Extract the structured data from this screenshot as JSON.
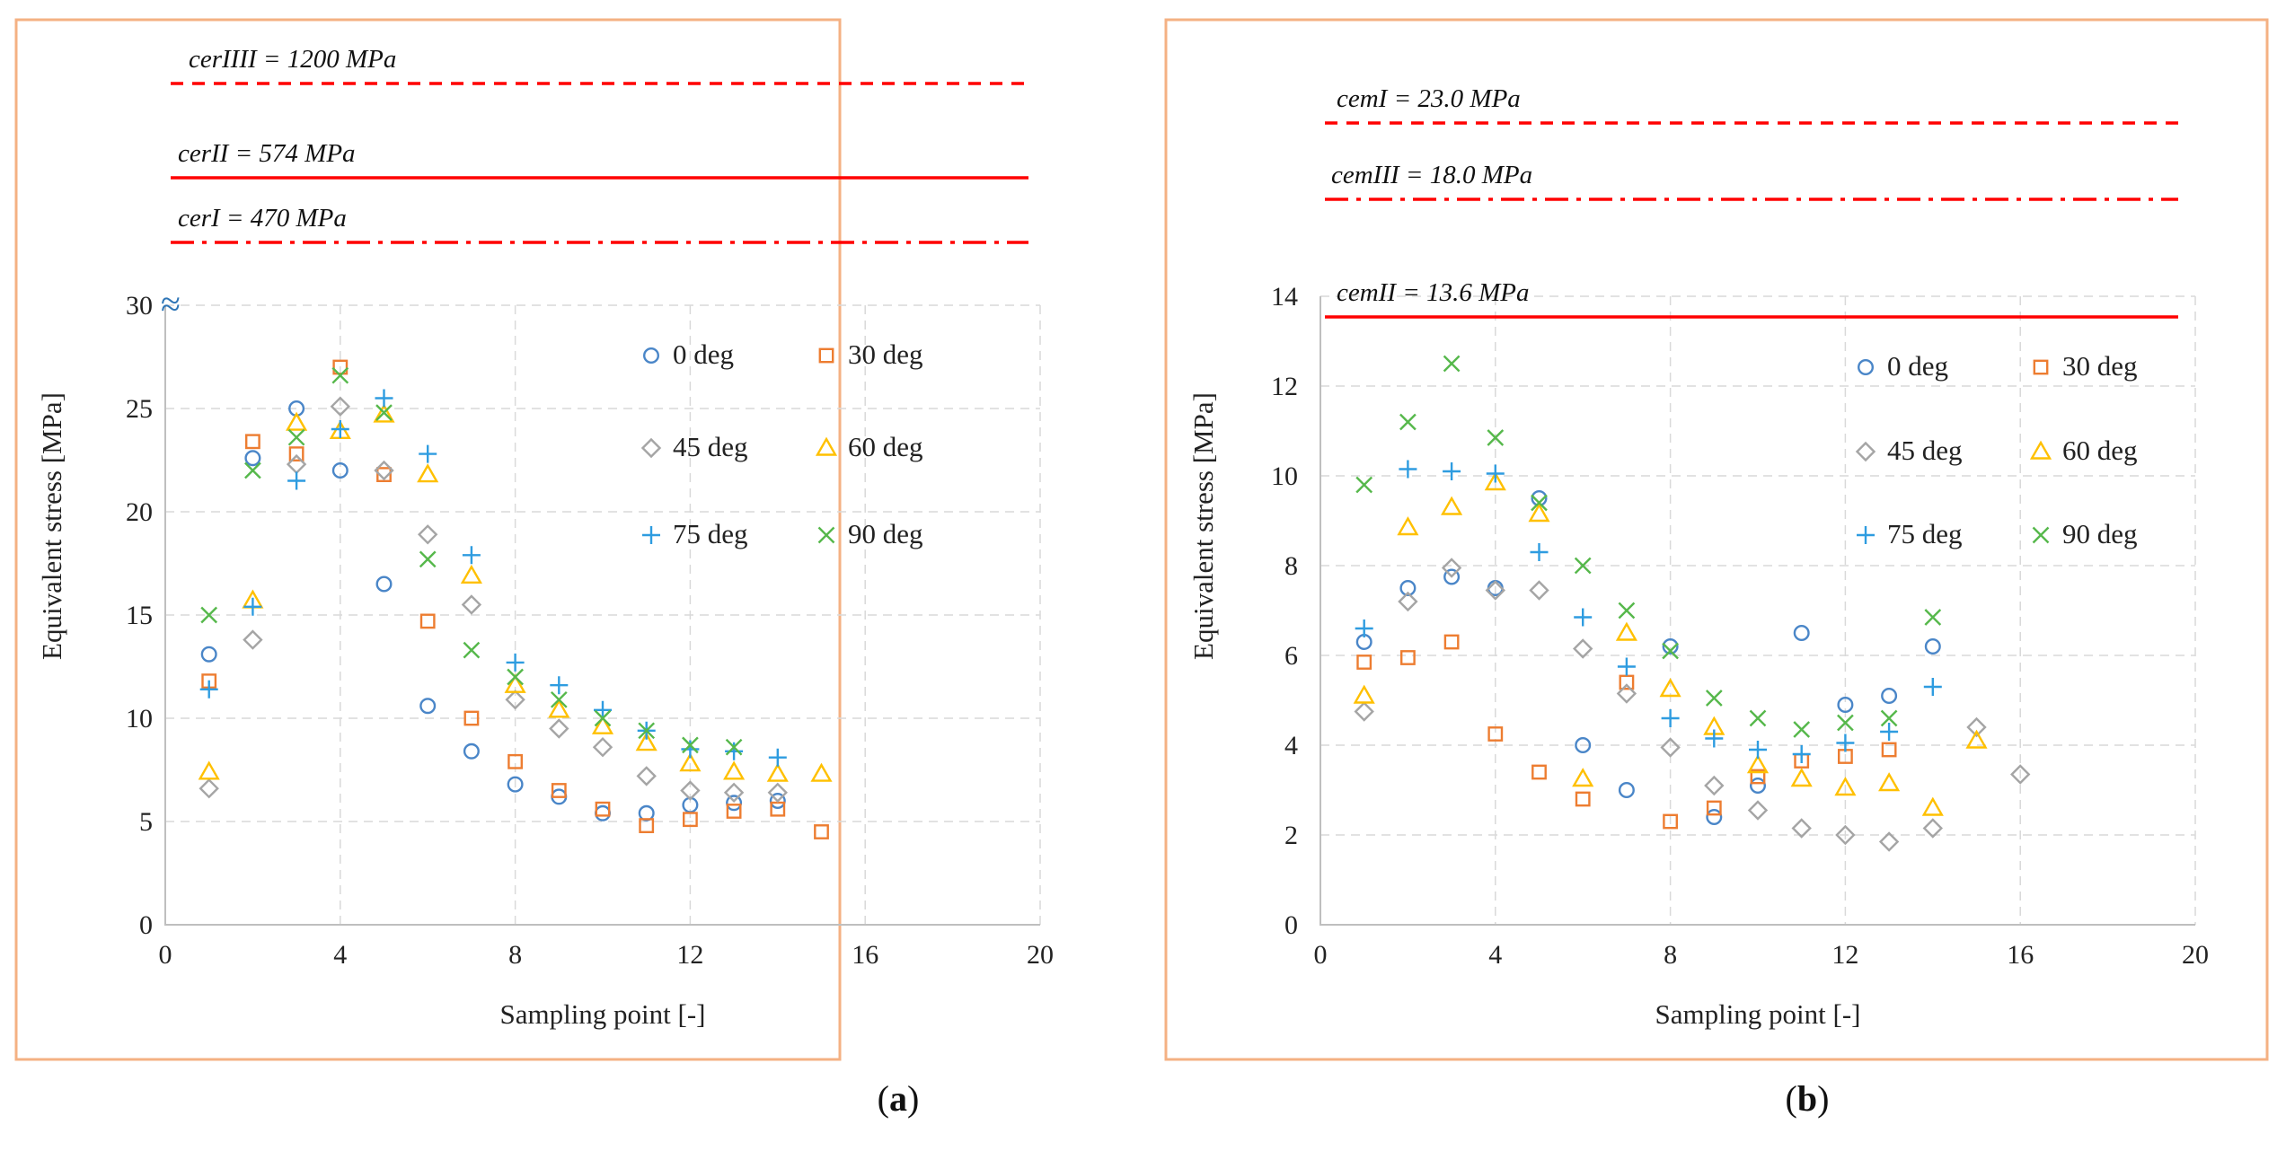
{
  "chart_data": [
    {
      "type": "scatter",
      "panel_label": "a",
      "xlabel": "Sampling point [-]",
      "ylabel": "Equivalent stress [MPa]",
      "xlim": [
        0,
        20
      ],
      "ylim": [
        0,
        30
      ],
      "x_ticks": [
        "0",
        "4",
        "8",
        "12",
        "16",
        "20"
      ],
      "y_ticks": [
        "0",
        "5",
        "10",
        "15",
        "20",
        "25",
        "30"
      ],
      "axis_break": "≈",
      "grid": true,
      "legend_position": "right",
      "critical_lines": [
        {
          "label": "cerIIII = 1200 MPa",
          "value": 1200,
          "style": "dashed"
        },
        {
          "label": "cerII = 574 MPa",
          "value": 574,
          "style": "solid"
        },
        {
          "label": "cerI = 470 MPa",
          "value": 470,
          "style": "dashdot"
        }
      ],
      "series": [
        {
          "name": "0 deg",
          "marker": "circle",
          "color": "#4a86c8",
          "x": [
            1,
            2,
            3,
            4,
            5,
            6,
            7,
            8,
            9,
            10,
            11,
            12,
            13,
            14
          ],
          "y": [
            13.1,
            22.6,
            25.0,
            22.0,
            16.5,
            10.6,
            8.4,
            6.8,
            6.2,
            5.4,
            5.4,
            5.8,
            5.9,
            6.0
          ]
        },
        {
          "name": "30 deg",
          "marker": "square",
          "color": "#ed7d31",
          "x": [
            1,
            2,
            3,
            4,
            5,
            6,
            7,
            8,
            9,
            10,
            11,
            12,
            13,
            14,
            15
          ],
          "y": [
            11.8,
            23.4,
            22.8,
            27.0,
            21.8,
            14.7,
            10.0,
            7.9,
            6.5,
            5.6,
            4.8,
            5.1,
            5.5,
            5.6,
            4.5
          ]
        },
        {
          "name": "45 deg",
          "marker": "diamond",
          "color": "#a5a5a5",
          "x": [
            1,
            2,
            3,
            4,
            5,
            6,
            7,
            8,
            9,
            10,
            11,
            12,
            13,
            14
          ],
          "y": [
            6.6,
            13.8,
            22.3,
            25.1,
            22.0,
            18.9,
            15.5,
            10.9,
            9.5,
            8.6,
            7.2,
            6.5,
            6.4,
            6.4
          ]
        },
        {
          "name": "60 deg",
          "marker": "triangle",
          "color": "#ffc000",
          "x": [
            1,
            2,
            3,
            4,
            5,
            6,
            7,
            8,
            9,
            10,
            11,
            12,
            13,
            14,
            15
          ],
          "y": [
            7.4,
            15.7,
            24.3,
            23.9,
            24.7,
            21.8,
            16.9,
            11.6,
            10.4,
            9.6,
            8.8,
            7.8,
            7.4,
            7.3,
            7.3
          ]
        },
        {
          "name": "75 deg",
          "marker": "plus",
          "color": "#2e9ce0",
          "x": [
            1,
            2,
            3,
            4,
            5,
            6,
            7,
            8,
            9,
            10,
            11,
            12,
            13,
            14
          ],
          "y": [
            11.4,
            15.4,
            21.5,
            24.0,
            25.5,
            22.8,
            17.9,
            12.7,
            11.6,
            10.4,
            9.4,
            8.5,
            8.4,
            8.1
          ]
        },
        {
          "name": "90 deg",
          "marker": "cross",
          "color": "#56b84b",
          "x": [
            1,
            2,
            3,
            4,
            5,
            6,
            7,
            8,
            9,
            10,
            11,
            12,
            13
          ],
          "y": [
            15.0,
            22.0,
            23.6,
            26.6,
            24.8,
            17.7,
            13.3,
            12.0,
            10.9,
            10.0,
            9.4,
            8.7,
            8.6
          ]
        }
      ]
    },
    {
      "type": "scatter",
      "panel_label": "b",
      "xlabel": "Sampling point [-]",
      "ylabel": "Equivalent stress [MPa]",
      "xlim": [
        0,
        20
      ],
      "ylim": [
        0,
        14
      ],
      "x_ticks": [
        "0",
        "4",
        "8",
        "12",
        "16",
        "20"
      ],
      "y_ticks": [
        "0",
        "2",
        "4",
        "6",
        "8",
        "10",
        "12",
        "14"
      ],
      "grid": true,
      "legend_position": "right",
      "critical_lines": [
        {
          "label": "cemI = 23.0 MPa",
          "value": 23.0,
          "style": "dashed"
        },
        {
          "label": "cemIII = 18.0 MPa",
          "value": 18.0,
          "style": "dashdot"
        },
        {
          "label": "cemII = 13.6 MPa",
          "value": 13.6,
          "style": "solid"
        }
      ],
      "series": [
        {
          "name": "0 deg",
          "marker": "circle",
          "color": "#4a86c8",
          "x": [
            1,
            2,
            3,
            4,
            5,
            6,
            7,
            8,
            9,
            10,
            11,
            12,
            13,
            14
          ],
          "y": [
            6.3,
            7.5,
            7.75,
            7.5,
            9.5,
            4.0,
            3.0,
            6.2,
            2.4,
            3.1,
            6.5,
            4.9,
            5.1,
            6.2
          ]
        },
        {
          "name": "30 deg",
          "marker": "square",
          "color": "#ed7d31",
          "x": [
            1,
            2,
            3,
            4,
            5,
            6,
            7,
            8,
            9,
            10,
            11,
            12,
            13
          ],
          "y": [
            5.85,
            5.95,
            6.3,
            4.25,
            3.4,
            2.8,
            5.4,
            2.3,
            2.6,
            3.3,
            3.65,
            3.75,
            3.9
          ]
        },
        {
          "name": "45 deg",
          "marker": "diamond",
          "color": "#a5a5a5",
          "x": [
            1,
            2,
            3,
            4,
            5,
            6,
            7,
            8,
            9,
            10,
            11,
            12,
            13,
            14,
            15,
            16
          ],
          "y": [
            4.75,
            7.2,
            7.95,
            7.45,
            7.45,
            6.15,
            5.15,
            3.95,
            3.1,
            2.55,
            2.15,
            2.0,
            1.85,
            2.15,
            4.4,
            3.35
          ]
        },
        {
          "name": "60 deg",
          "marker": "triangle",
          "color": "#ffc000",
          "x": [
            1,
            2,
            3,
            4,
            5,
            6,
            7,
            8,
            9,
            10,
            11,
            12,
            13,
            14,
            15
          ],
          "y": [
            5.1,
            8.85,
            9.3,
            9.85,
            9.15,
            3.25,
            6.5,
            5.25,
            4.4,
            3.55,
            3.25,
            3.05,
            3.15,
            2.6,
            4.1
          ]
        },
        {
          "name": "75 deg",
          "marker": "plus",
          "color": "#2e9ce0",
          "x": [
            1,
            2,
            3,
            4,
            5,
            6,
            7,
            8,
            9,
            10,
            11,
            12,
            13,
            14
          ],
          "y": [
            6.6,
            10.15,
            10.1,
            10.05,
            8.3,
            6.85,
            5.75,
            4.6,
            4.15,
            3.9,
            3.8,
            4.05,
            4.3,
            5.3
          ]
        },
        {
          "name": "90 deg",
          "marker": "cross",
          "color": "#56b84b",
          "x": [
            1,
            2,
            3,
            4,
            5,
            6,
            7,
            8,
            9,
            10,
            11,
            12,
            13,
            14
          ],
          "y": [
            9.8,
            11.2,
            12.5,
            10.85,
            9.4,
            8.0,
            7.0,
            6.1,
            5.05,
            4.6,
            4.35,
            4.5,
            4.6,
            6.85
          ]
        }
      ]
    }
  ]
}
